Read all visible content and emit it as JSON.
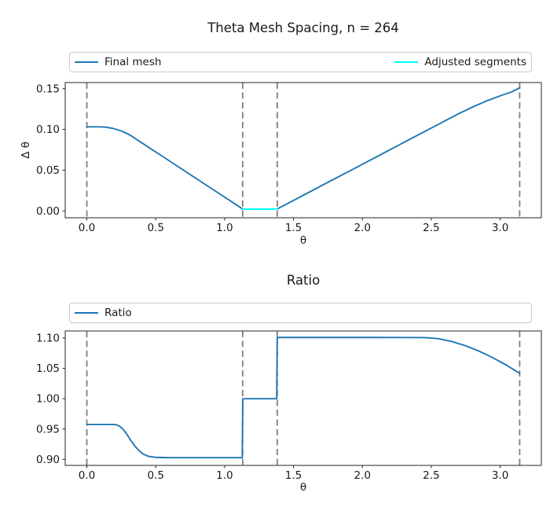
{
  "figure": {
    "background": "#ffffff",
    "frame_color": "#262626",
    "text_color": "#1a1a1a",
    "legend_border_color": "#cccccc"
  },
  "chart_data": [
    {
      "type": "line",
      "title": "Theta Mesh Spacing, n = 264",
      "xlabel": "θ",
      "ylabel": "Δ θ",
      "grid": false,
      "legend_position": "top-full-width-expanded",
      "xlim": [
        -0.157,
        3.299
      ],
      "ylim": [
        -0.0084,
        0.1575
      ],
      "xticks": {
        "values": [
          0,
          0.5,
          1.0,
          1.5,
          2.0,
          2.5,
          3.0
        ],
        "labels": [
          "0.0",
          "0.5",
          "1.0",
          "1.5",
          "2.0",
          "2.5",
          "3.0"
        ]
      },
      "yticks": {
        "values": [
          0.0,
          0.05,
          0.1,
          0.15
        ],
        "labels": [
          "0.00",
          "0.05",
          "0.10",
          "0.15"
        ]
      },
      "vlines": {
        "values": [
          0,
          1.131,
          1.382,
          3.1416
        ],
        "color": "#7f7f7f",
        "style": "dashed"
      },
      "series": [
        {
          "name": "Final mesh",
          "color": "#1f77b4",
          "x": [
            0,
            0.07,
            0.13,
            0.19,
            0.25,
            0.31,
            0.45,
            0.6,
            0.75,
            0.9,
            1.05,
            1.131,
            1.25,
            1.382,
            1.55,
            1.75,
            1.95,
            2.15,
            2.35,
            2.55,
            2.7,
            2.8,
            2.9,
            3.0,
            3.08,
            3.1416
          ],
          "y": [
            0.1032,
            0.1032,
            0.1029,
            0.1012,
            0.0982,
            0.0934,
            0.0779,
            0.0613,
            0.0446,
            0.028,
            0.0114,
            0.0024,
            0.0022,
            0.0024,
            0.0173,
            0.0351,
            0.0528,
            0.0706,
            0.0884,
            0.1061,
            0.1194,
            0.1275,
            0.1348,
            0.1412,
            0.1458,
            0.151
          ]
        },
        {
          "name": "Adjusted segments",
          "color": "#00ffff",
          "x": [
            1.131,
            1.382
          ],
          "y": [
            0.0022,
            0.0022
          ]
        }
      ]
    },
    {
      "type": "line",
      "title": "Ratio",
      "xlabel": "θ",
      "ylabel": "",
      "grid": false,
      "legend_position": "top-full-width",
      "xlim": [
        -0.157,
        3.299
      ],
      "ylim": [
        0.89,
        1.1117
      ],
      "xticks": {
        "values": [
          0,
          0.5,
          1.0,
          1.5,
          2.0,
          2.5,
          3.0
        ],
        "labels": [
          "0.0",
          "0.5",
          "1.0",
          "1.5",
          "2.0",
          "2.5",
          "3.0"
        ]
      },
      "yticks": {
        "values": [
          0.9,
          0.95,
          1.0,
          1.05,
          1.1
        ],
        "labels": [
          "0.90",
          "0.95",
          "1.00",
          "1.05",
          "1.10"
        ]
      },
      "vlines": {
        "values": [
          0,
          1.131,
          1.382,
          3.1416
        ],
        "color": "#7f7f7f",
        "style": "dashed"
      },
      "series": [
        {
          "name": "Ratio",
          "color": "#1f77b4",
          "x": [
            0,
            0.12,
            0.2,
            0.23,
            0.26,
            0.29,
            0.32,
            0.35,
            0.38,
            0.41,
            0.45,
            0.5,
            0.58,
            0.8,
            1.0,
            1.128,
            1.132,
            1.378,
            1.382,
            1.55,
            1.8,
            2.1,
            2.45,
            2.55,
            2.65,
            2.75,
            2.85,
            2.95,
            3.05,
            3.1416
          ],
          "y": [
            0.9575,
            0.9575,
            0.9575,
            0.9558,
            0.9505,
            0.9415,
            0.931,
            0.9215,
            0.914,
            0.9085,
            0.9048,
            0.9033,
            0.9028,
            0.9027,
            0.9027,
            0.9027,
            1.0,
            1.0,
            1.101,
            1.101,
            1.101,
            1.101,
            1.1008,
            1.0992,
            1.0943,
            1.0872,
            1.0782,
            1.0672,
            1.0548,
            1.0418
          ]
        }
      ]
    }
  ]
}
